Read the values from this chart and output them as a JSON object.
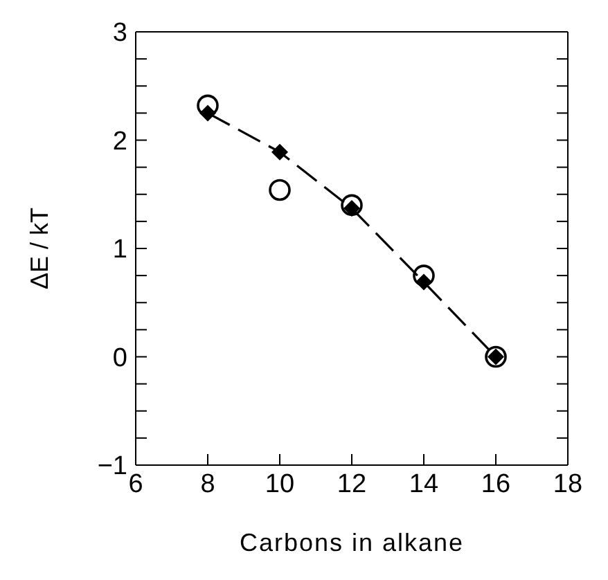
{
  "chart_data": {
    "type": "scatter",
    "xlabel": "Carbons in alkane",
    "ylabel": "ΔE / kT",
    "x": [
      8,
      10,
      12,
      14,
      16
    ],
    "series": [
      {
        "marker": "circle",
        "color": "#000000",
        "values": [
          2.32,
          1.54,
          1.4,
          0.75,
          0
        ]
      },
      {
        "type": "line",
        "marker": "diamond",
        "line_style": "dashed",
        "color": "#000000",
        "values": [
          2.25,
          1.89,
          1.37,
          0.69,
          0
        ]
      }
    ],
    "xlim": [
      6,
      18
    ],
    "xticks": [
      6,
      8,
      10,
      12,
      14,
      16,
      18
    ],
    "ylim": [
      -1,
      3
    ],
    "yticks": [
      -1,
      {
        "value": -0.75,
        "label": null
      },
      {
        "value": -0.5,
        "label": null
      },
      {
        "value": -0.25,
        "label": null
      },
      0,
      {
        "value": 0.25,
        "label": null
      },
      {
        "value": 0.5,
        "label": null
      },
      {
        "value": 0.75,
        "label": null
      },
      1,
      {
        "value": 1.25,
        "label": null
      },
      {
        "value": 1.5,
        "label": null
      },
      {
        "value": 1.75,
        "label": null
      },
      2,
      {
        "value": 2.25,
        "label": null
      },
      {
        "value": 2.5,
        "label": null
      },
      {
        "value": 2.75,
        "label": null
      },
      3
    ],
    "grid": false,
    "legend": false
  }
}
